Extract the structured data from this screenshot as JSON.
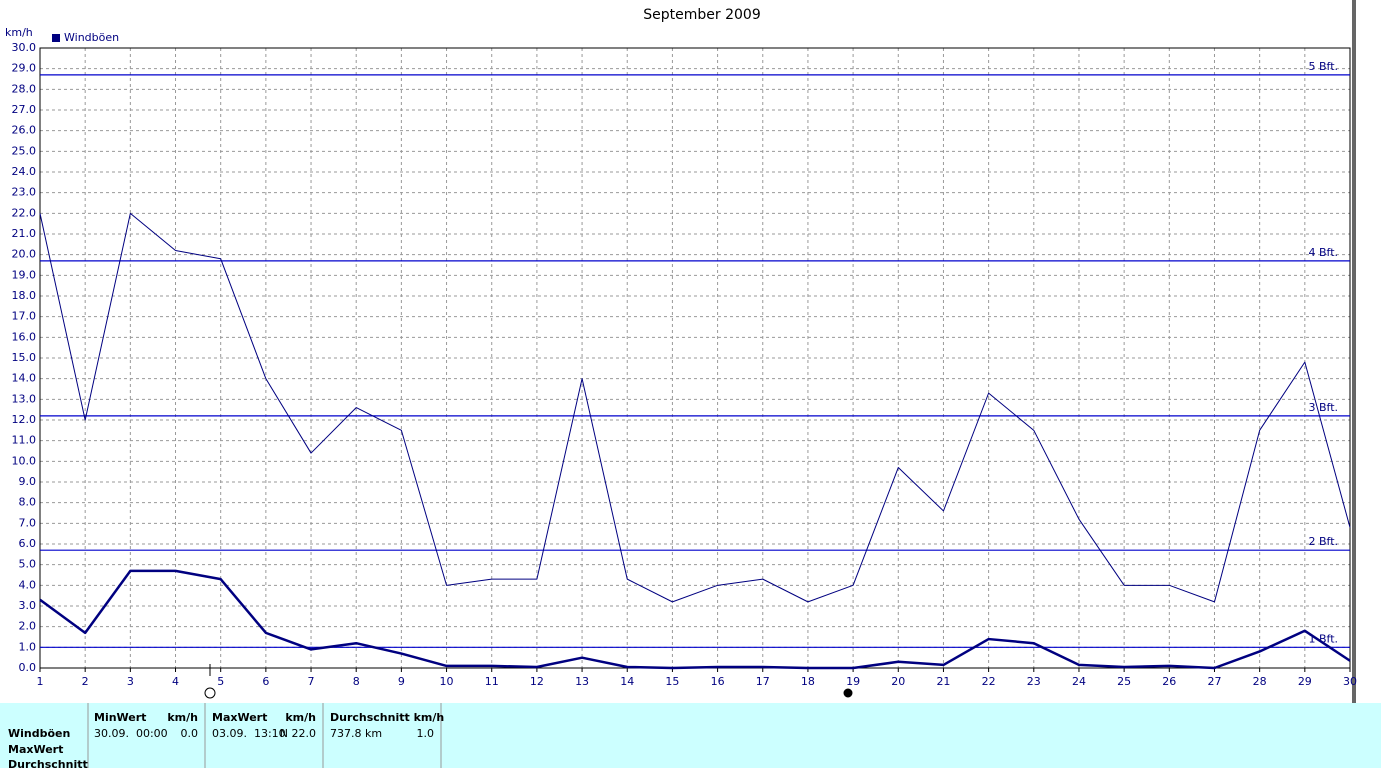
{
  "chart_data": {
    "type": "line",
    "title": "September 2009",
    "y_label": "km/h",
    "x": [
      1,
      2,
      3,
      4,
      5,
      6,
      7,
      8,
      9,
      10,
      11,
      12,
      13,
      14,
      15,
      16,
      17,
      18,
      19,
      20,
      21,
      22,
      23,
      24,
      25,
      26,
      27,
      28,
      29,
      30
    ],
    "xlim": [
      1,
      30
    ],
    "xticks": [
      1,
      2,
      3,
      4,
      5,
      6,
      7,
      8,
      9,
      10,
      11,
      12,
      13,
      14,
      15,
      16,
      17,
      18,
      19,
      20,
      21,
      22,
      23,
      24,
      25,
      26,
      27,
      28,
      29,
      30
    ],
    "ylim": [
      0,
      30
    ],
    "yticks": [
      {
        "value": 0,
        "label": "0.0"
      },
      {
        "value": 1,
        "label": "1.0"
      },
      {
        "value": 2,
        "label": "2.0"
      },
      {
        "value": 3,
        "label": "3.0"
      },
      {
        "value": 4,
        "label": "4.0"
      },
      {
        "value": 5,
        "label": "5.0"
      },
      {
        "value": 6,
        "label": "6.0"
      },
      {
        "value": 7,
        "label": "7.0"
      },
      {
        "value": 8,
        "label": "8.0"
      },
      {
        "value": 9,
        "label": "9.0"
      },
      {
        "value": 10,
        "label": "10.0"
      },
      {
        "value": 11,
        "label": "11.0"
      },
      {
        "value": 12,
        "label": "12.0"
      },
      {
        "value": 13,
        "label": "13.0"
      },
      {
        "value": 14,
        "label": "14.0"
      },
      {
        "value": 15,
        "label": "15.0"
      },
      {
        "value": 16,
        "label": "16.0"
      },
      {
        "value": 17,
        "label": "17.0"
      },
      {
        "value": 18,
        "label": "18.0"
      },
      {
        "value": 19,
        "label": "19.0"
      },
      {
        "value": 20,
        "label": "20.0"
      },
      {
        "value": 21,
        "label": "21.0"
      },
      {
        "value": 22,
        "label": "22.0"
      },
      {
        "value": 23,
        "label": "23.0"
      },
      {
        "value": 24,
        "label": "24.0"
      },
      {
        "value": 25,
        "label": "25.0"
      },
      {
        "value": 26,
        "label": "26.0"
      },
      {
        "value": 27,
        "label": "27.0"
      },
      {
        "value": 28,
        "label": "28.0"
      },
      {
        "value": 29,
        "label": "29.0"
      },
      {
        "value": 30,
        "label": "30.0"
      }
    ],
    "grid": true,
    "legend": "top-left",
    "series": [
      {
        "name": "Windböen",
        "color": "#000080",
        "stroke_width": 1,
        "values": [
          22.0,
          12.0,
          22.0,
          20.2,
          19.8,
          14.0,
          10.4,
          12.6,
          11.5,
          4.0,
          4.3,
          4.3,
          14.0,
          4.3,
          3.2,
          4.0,
          4.3,
          3.2,
          4.0,
          9.7,
          7.6,
          13.3,
          11.5,
          7.2,
          4.0,
          4.0,
          3.2,
          11.5,
          14.8,
          6.8
        ]
      },
      {
        "color": "#000080",
        "stroke_width": 2.5,
        "values": [
          3.3,
          1.7,
          4.7,
          4.7,
          4.3,
          1.7,
          0.9,
          1.2,
          0.7,
          0.1,
          0.1,
          0.05,
          0.5,
          0.05,
          0.0,
          0.05,
          0.05,
          0.0,
          0.0,
          0.3,
          0.15,
          1.4,
          1.2,
          0.15,
          0.05,
          0.1,
          0.0,
          0.8,
          1.8,
          0.35
        ]
      }
    ],
    "reference_lines": [
      {
        "value": 28.7,
        "label": "5 Bft."
      },
      {
        "value": 19.7,
        "label": "4 Bft."
      },
      {
        "value": 12.2,
        "label": "3 Bft."
      },
      {
        "value": 5.7,
        "label": "2 Bft."
      },
      {
        "value": 1.0,
        "label": "1 Bft."
      }
    ]
  },
  "stats_panel": {
    "row_labels": [
      "Windböen",
      "MaxWert",
      "Durchschnitt"
    ],
    "columns": [
      {
        "header": "MinWert",
        "unit": "km/h",
        "date": "30.09.  00:00",
        "value": "0.0"
      },
      {
        "header": "MaxWert",
        "unit": "km/h",
        "date": "03.09.  13:10",
        "value": "N 22.0"
      },
      {
        "header": "Durchschnitt km/h",
        "date": "737.8 km",
        "value": "1.0"
      }
    ]
  }
}
